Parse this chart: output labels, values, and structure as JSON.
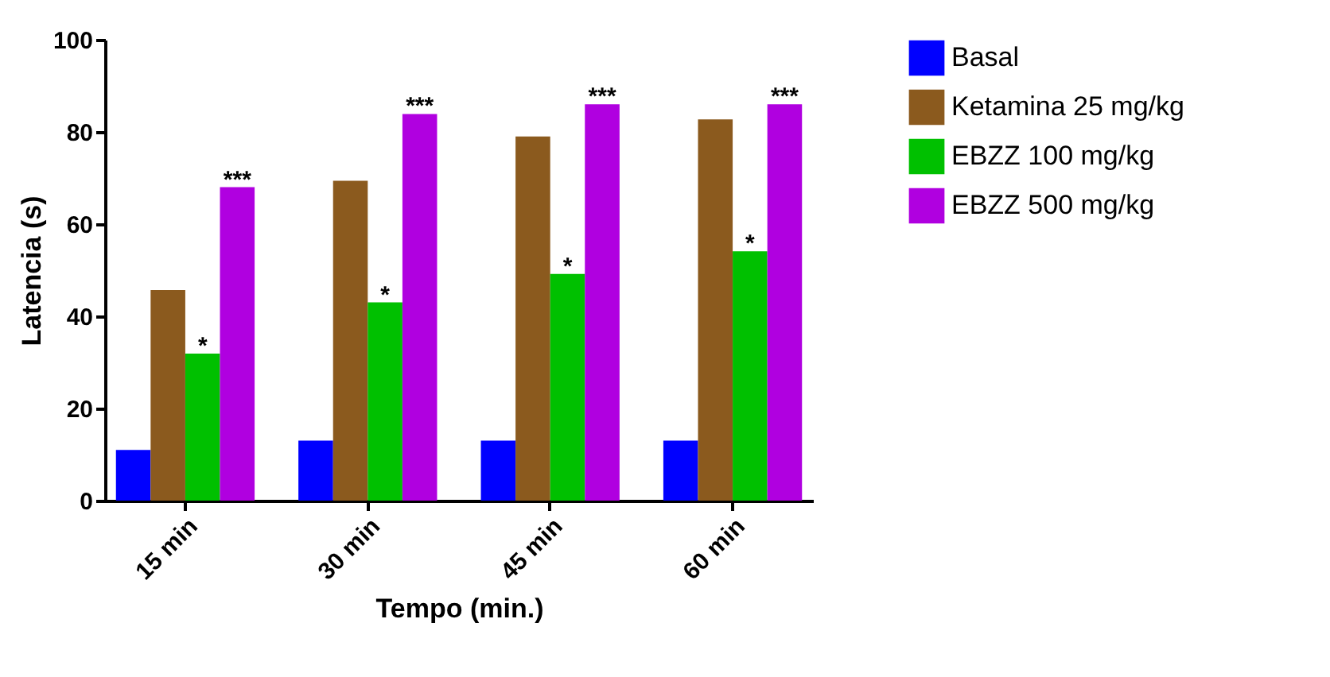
{
  "chart_data": {
    "type": "bar",
    "xlabel": "Tempo (min.)",
    "ylabel": "Latencia (s)",
    "categories": [
      "15 min",
      "30 min",
      "45 min",
      "60 min"
    ],
    "series": [
      {
        "name": "Basal",
        "color": "#0000ff",
        "values": [
          11,
          13,
          13,
          13
        ]
      },
      {
        "name": "Ketamina 25 mg/kg",
        "color": "#8b5a1e",
        "values": [
          45.7,
          69.4,
          79,
          82.7
        ]
      },
      {
        "name": "EBZZ 100 mg/kg",
        "color": "#00c000",
        "values": [
          31.9,
          43,
          49.2,
          54.1
        ],
        "value_labels": [
          "*",
          "*",
          "*",
          "*"
        ]
      },
      {
        "name": "EBZZ 500 mg/kg",
        "color": "#b000e0",
        "values": [
          68,
          83.9,
          86,
          86
        ],
        "value_labels": [
          "***",
          "***",
          "***",
          "***"
        ]
      }
    ],
    "ylim": [
      0,
      100
    ],
    "yticks": [
      0,
      20,
      40,
      60,
      80,
      100
    ],
    "legend": "top right"
  }
}
